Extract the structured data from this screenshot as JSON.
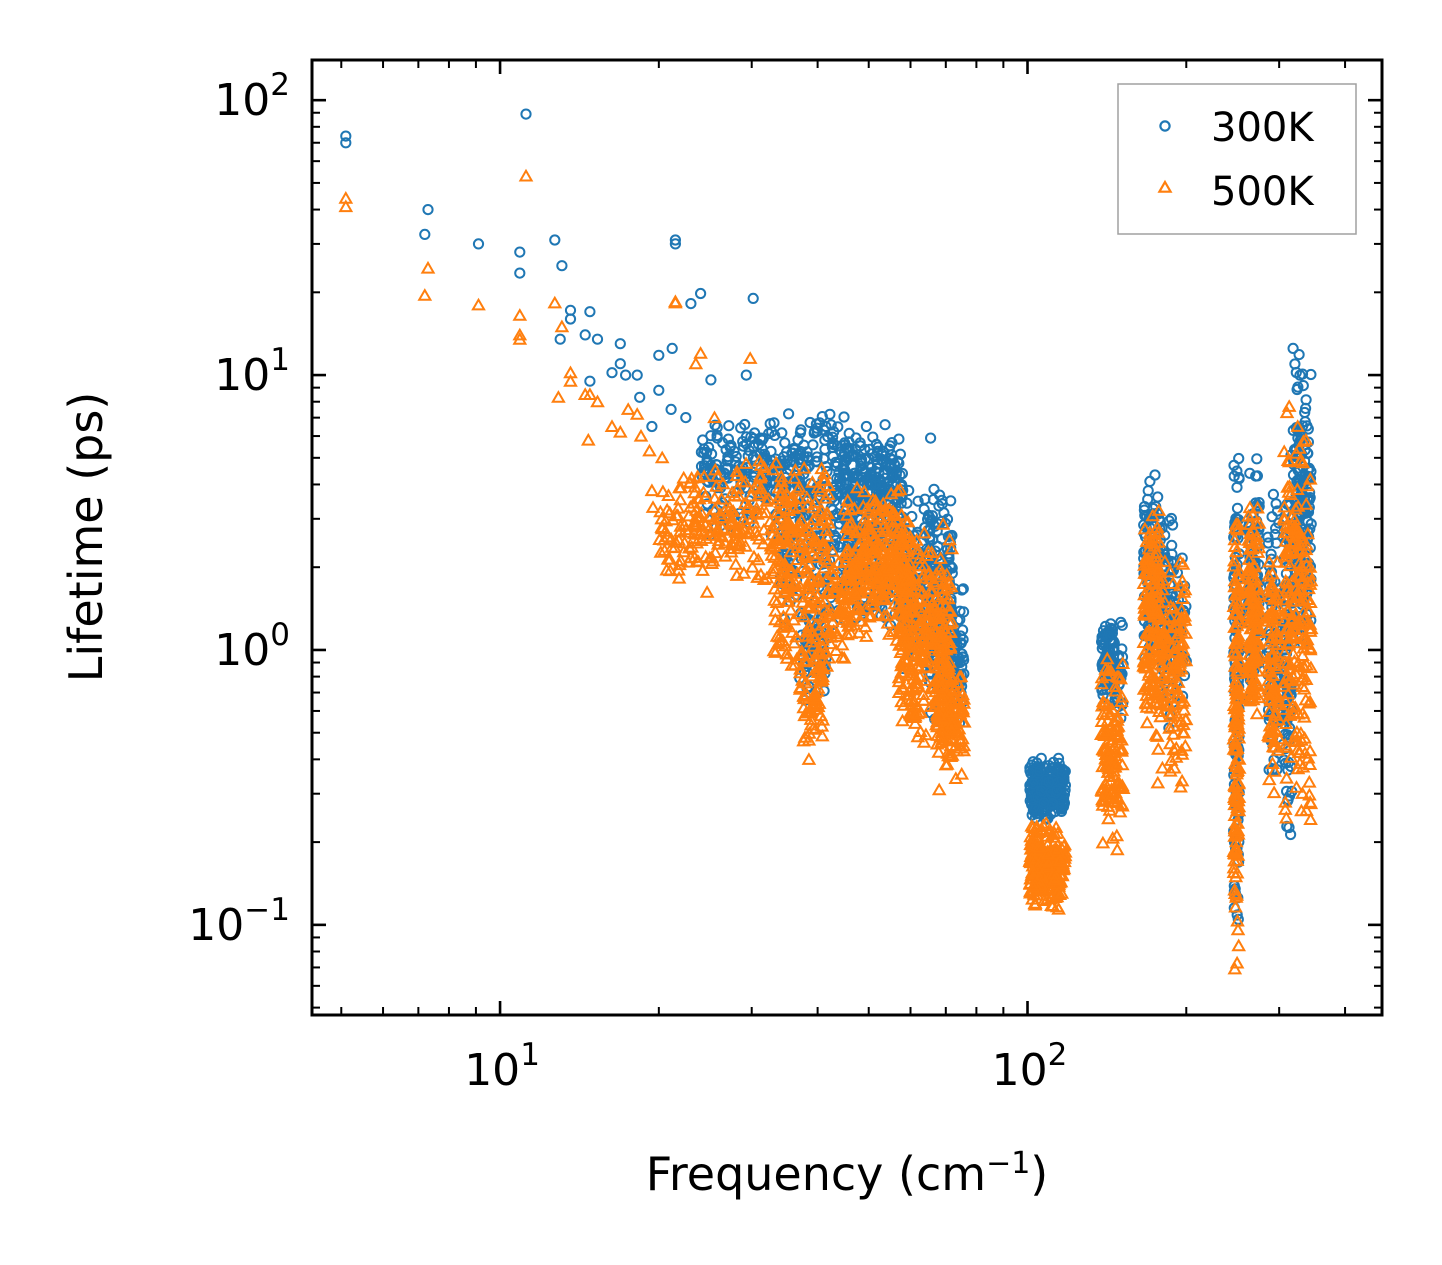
{
  "chart_data": {
    "type": "scatter",
    "title": "",
    "xscale": "log",
    "yscale": "log",
    "xlim": [
      4.4,
      470
    ],
    "ylim": [
      0.047,
      140
    ],
    "xlabel": {
      "text": "Frequency (cm",
      "sup": "−1",
      "suffix": ")"
    },
    "ylabel": "Lifetime (ps)",
    "x_ticks": [
      {
        "value": 10,
        "base": "10",
        "exp": "1"
      },
      {
        "value": 100,
        "base": "10",
        "exp": "2"
      }
    ],
    "y_ticks": [
      {
        "value": 0.1,
        "base": "10",
        "exp": "−1"
      },
      {
        "value": 1,
        "base": "10",
        "exp": "0"
      },
      {
        "value": 10,
        "base": "10",
        "exp": "1"
      },
      {
        "value": 100,
        "base": "10",
        "exp": "2"
      }
    ],
    "legend_position": "top-right",
    "grid": false,
    "series": [
      {
        "name": "300K",
        "marker": "circle",
        "color": "#1f77b4",
        "points": [
          [
            5.1,
            74
          ],
          [
            5.1,
            70
          ],
          [
            7.3,
            40
          ],
          [
            7.2,
            32.5
          ],
          [
            9.1,
            30
          ],
          [
            10.9,
            28
          ],
          [
            10.9,
            23.5
          ],
          [
            11.2,
            89
          ],
          [
            12.7,
            31
          ],
          [
            13.1,
            25
          ],
          [
            13.0,
            13.5
          ],
          [
            13.6,
            16
          ],
          [
            13.6,
            17.2
          ],
          [
            14.5,
            14
          ],
          [
            14.8,
            17
          ],
          [
            14.8,
            9.5
          ],
          [
            15.3,
            13.5
          ],
          [
            16.3,
            10.2
          ],
          [
            16.9,
            13
          ],
          [
            16.9,
            11
          ],
          [
            17.3,
            10
          ],
          [
            18.2,
            10
          ],
          [
            18.4,
            8.3
          ],
          [
            19.4,
            6.5
          ],
          [
            20.0,
            11.8
          ],
          [
            20.0,
            8.8
          ],
          [
            21.1,
            7.5
          ],
          [
            21.2,
            12.5
          ],
          [
            21.5,
            31
          ],
          [
            21.5,
            30
          ],
          [
            22.5,
            7
          ],
          [
            23.0,
            18.2
          ],
          [
            24.0,
            19.8
          ],
          [
            25.1,
            9.6
          ],
          [
            29.3,
            10
          ],
          [
            30.2,
            19
          ],
          [
            42.2,
            7.2
          ],
          [
            49.5,
            6.5
          ],
          [
            53.7,
            6.6
          ],
          [
            65.5,
            5.9
          ],
          [
            41.2,
            6.3
          ],
          [
            36.5,
            4.2
          ],
          [
            35.9,
            5.2
          ],
          [
            72.0,
            1.9
          ],
          [
            74.5,
            0.9
          ],
          [
            68.0,
            0.55
          ]
        ],
        "clusters": [
          {
            "x": [
              24,
              46
            ],
            "y": [
              2.6,
              7.5
            ],
            "n": 320
          },
          {
            "x": [
              34,
              46
            ],
            "y": [
              1.1,
              4.5
            ],
            "n": 140
          },
          {
            "x": [
              37,
              42
            ],
            "y": [
              0.65,
              1.6
            ],
            "n": 60
          },
          {
            "x": [
              45,
              58
            ],
            "y": [
              2.2,
              6.3
            ],
            "n": 260
          },
          {
            "x": [
              46,
              60
            ],
            "y": [
              1.0,
              3.2
            ],
            "n": 120
          },
          {
            "x": [
              57,
              72
            ],
            "y": [
              0.75,
              4.2
            ],
            "n": 260
          },
          {
            "x": [
              65,
              76
            ],
            "y": [
              0.5,
              1.9
            ],
            "n": 110
          },
          {
            "x": [
              101,
              118
            ],
            "y": [
              0.24,
              0.41
            ],
            "n": 230
          },
          {
            "x": [
              138,
              146
            ],
            "y": [
              0.6,
              1.45
            ],
            "n": 80
          },
          {
            "x": [
              146,
              152
            ],
            "y": [
              0.55,
              1.3
            ],
            "n": 30
          },
          {
            "x": [
              166,
              178
            ],
            "y": [
              0.8,
              4.8
            ],
            "n": 120
          },
          {
            "x": [
              178,
              190
            ],
            "y": [
              0.5,
              3.6
            ],
            "n": 90
          },
          {
            "x": [
              190,
              200
            ],
            "y": [
              0.6,
              2.7
            ],
            "n": 40
          },
          {
            "x": [
              246,
              252
            ],
            "y": [
              0.065,
              8.0
            ],
            "n": 140
          },
          {
            "x": [
              262,
              275
            ],
            "y": [
              0.5,
              5.6
            ],
            "n": 120
          },
          {
            "x": [
              285,
              300
            ],
            "y": [
              0.3,
              4.3
            ],
            "n": 90
          },
          {
            "x": [
              305,
              318
            ],
            "y": [
              0.2,
              5.8
            ],
            "n": 100
          },
          {
            "x": [
              318,
              345
            ],
            "y": [
              0.8,
              13.8
            ],
            "n": 160
          }
        ]
      },
      {
        "name": "500K",
        "marker": "triangle",
        "color": "#ff7f0e",
        "points": [
          [
            5.1,
            44
          ],
          [
            5.1,
            41
          ],
          [
            7.3,
            24.5
          ],
          [
            7.2,
            19.5
          ],
          [
            9.1,
            18
          ],
          [
            10.9,
            16.5
          ],
          [
            10.9,
            14
          ],
          [
            10.9,
            13.5
          ],
          [
            11.2,
            53
          ],
          [
            12.7,
            18.3
          ],
          [
            13.1,
            15
          ],
          [
            13.6,
            10.2
          ],
          [
            13.6,
            9.5
          ],
          [
            12.9,
            8.3
          ],
          [
            14.5,
            8.5
          ],
          [
            14.8,
            8.5
          ],
          [
            15.3,
            8
          ],
          [
            14.7,
            5.8
          ],
          [
            16.3,
            6.5
          ],
          [
            16.9,
            6.2
          ],
          [
            17.5,
            7.5
          ],
          [
            18.2,
            7.2
          ],
          [
            18.5,
            6
          ],
          [
            19.2,
            5.3
          ],
          [
            19.4,
            3.8
          ],
          [
            19.5,
            3.3
          ],
          [
            20.3,
            5
          ],
          [
            21.5,
            18.3
          ],
          [
            21.5,
            18.5
          ],
          [
            23.5,
            11
          ],
          [
            24.0,
            12
          ],
          [
            25.5,
            7
          ],
          [
            29.8,
            11.5
          ],
          [
            26.0,
            2.5
          ],
          [
            29.0,
            1.9
          ],
          [
            38.5,
            0.4
          ],
          [
            38.5,
            0.47
          ],
          [
            60.0,
            0.58
          ],
          [
            68.0,
            0.31
          ],
          [
            74.0,
            0.5
          ]
        ],
        "clusters": [
          {
            "x": [
              20,
              42
            ],
            "y": [
              1.6,
              5.0
            ],
            "n": 330
          },
          {
            "x": [
              33,
              46
            ],
            "y": [
              0.8,
              2.6
            ],
            "n": 160
          },
          {
            "x": [
              37,
              41
            ],
            "y": [
              0.4,
              1.2
            ],
            "n": 60
          },
          {
            "x": [
              45,
              60
            ],
            "y": [
              1.0,
              4.2
            ],
            "n": 300
          },
          {
            "x": [
              57,
              72
            ],
            "y": [
              0.42,
              2.9
            ],
            "n": 300
          },
          {
            "x": [
              67,
              76
            ],
            "y": [
              0.33,
              0.95
            ],
            "n": 110
          },
          {
            "x": [
              101,
              118
            ],
            "y": [
              0.11,
              0.24
            ],
            "n": 230
          },
          {
            "x": [
              138,
              152
            ],
            "y": [
              0.18,
              1.0
            ],
            "n": 130
          },
          {
            "x": [
              166,
              178
            ],
            "y": [
              0.45,
              3.6
            ],
            "n": 150
          },
          {
            "x": [
              176,
              200
            ],
            "y": [
              0.3,
              2.5
            ],
            "n": 140
          },
          {
            "x": [
              246,
              252
            ],
            "y": [
              0.06,
              4.8
            ],
            "n": 160
          },
          {
            "x": [
              262,
              275
            ],
            "y": [
              0.45,
              3.5
            ],
            "n": 130
          },
          {
            "x": [
              285,
              300
            ],
            "y": [
              0.28,
              2.7
            ],
            "n": 90
          },
          {
            "x": [
              305,
              345
            ],
            "y": [
              0.2,
              9.0
            ],
            "n": 220
          }
        ]
      }
    ]
  }
}
